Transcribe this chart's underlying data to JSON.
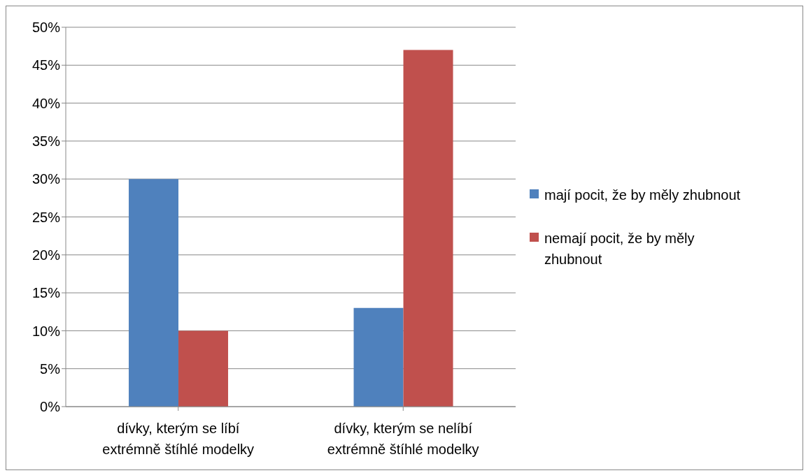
{
  "chart_data": {
    "type": "bar",
    "categories": [
      "dívky, kterým se líbí extrémně štíhlé modelky",
      "dívky, kterým se nelíbí extrémně štíhlé modelky"
    ],
    "series": [
      {
        "name": "mají pocit, že by měly zhubnout",
        "color": "#4f81bd",
        "values": [
          30,
          13
        ]
      },
      {
        "name": "nemají pocit, že by měly zhubnout",
        "color": "#c0504d",
        "values": [
          10,
          47
        ]
      }
    ],
    "ylim": [
      0,
      50
    ],
    "yticks": [
      {
        "value": 0,
        "label": "0%"
      },
      {
        "value": 5,
        "label": "5%"
      },
      {
        "value": 10,
        "label": "10%"
      },
      {
        "value": 15,
        "label": "15%"
      },
      {
        "value": 20,
        "label": "20%"
      },
      {
        "value": 25,
        "label": "25%"
      },
      {
        "value": 30,
        "label": "30%"
      },
      {
        "value": 35,
        "label": "35%"
      },
      {
        "value": 40,
        "label": "40%"
      },
      {
        "value": 45,
        "label": "45%"
      },
      {
        "value": 50,
        "label": "50%"
      }
    ],
    "grid": "y",
    "legend": "right"
  }
}
